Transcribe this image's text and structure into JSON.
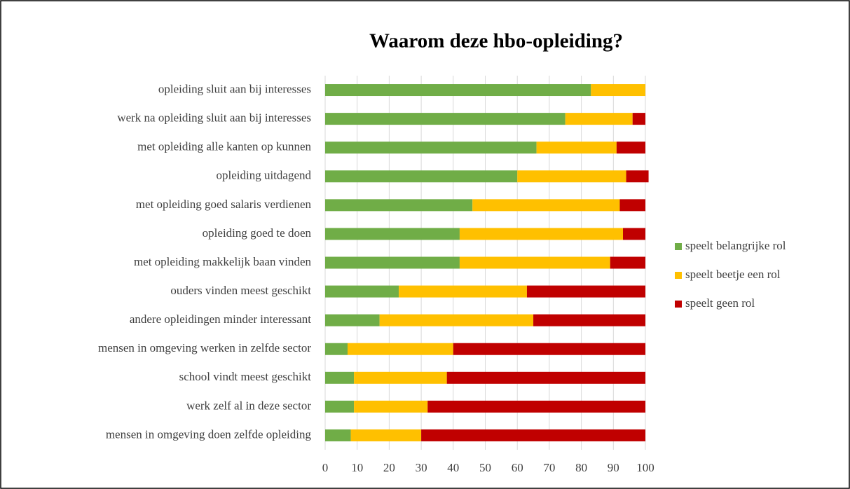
{
  "chart_data": {
    "type": "bar",
    "orientation": "horizontal",
    "stacked": true,
    "title": "Waarom deze hbo-opleiding?",
    "categories": [
      "opleiding sluit aan bij interesses",
      "werk na opleiding sluit aan bij interesses",
      "met opleiding alle kanten op kunnen",
      "opleiding uitdagend",
      "met opleiding goed salaris verdienen",
      "opleiding goed te doen",
      "met opleiding makkelijk baan vinden",
      "ouders vinden meest geschikt",
      "andere opleidingen minder interessant",
      "mensen in omgeving werken in zelfde sector",
      "school vindt meest geschikt",
      "werk zelf al in deze sector",
      "mensen in omgeving doen zelfde opleiding"
    ],
    "series": [
      {
        "name": "speelt belangrijke rol",
        "color": "#70ad47",
        "values": [
          83,
          75,
          66,
          60,
          46,
          42,
          42,
          23,
          17,
          7,
          9,
          9,
          8
        ]
      },
      {
        "name": "speelt beetje een rol",
        "color": "#ffc000",
        "values": [
          17,
          21,
          25,
          34,
          46,
          51,
          47,
          40,
          48,
          33,
          29,
          23,
          22
        ]
      },
      {
        "name": "speelt geen rol",
        "color": "#c00000",
        "values": [
          0,
          4,
          9,
          7,
          8,
          7,
          11,
          37,
          35,
          60,
          62,
          68,
          70
        ]
      }
    ],
    "xlim": [
      0,
      100
    ],
    "xticks": [
      0,
      10,
      20,
      30,
      40,
      50,
      60,
      70,
      80,
      90,
      100
    ],
    "grid": true,
    "legend": "right"
  }
}
